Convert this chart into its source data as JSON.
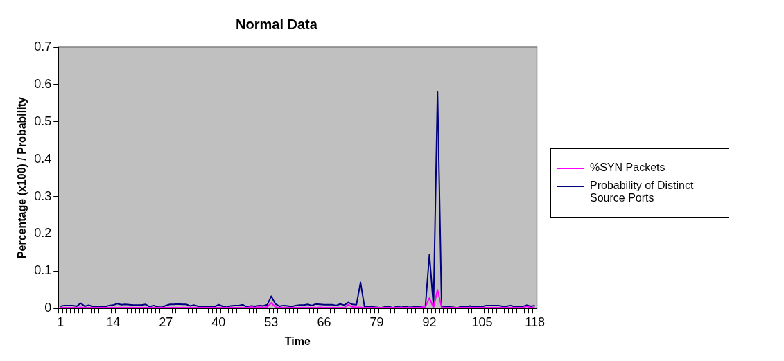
{
  "chart_data": {
    "type": "line",
    "title": "Normal Data",
    "xlabel": "Time",
    "ylabel": "Percentage (x100) / Probability",
    "categories": [
      "1",
      null,
      null,
      null,
      null,
      null,
      null,
      null,
      null,
      null,
      null,
      null,
      null,
      "14",
      null,
      null,
      null,
      null,
      null,
      null,
      null,
      null,
      null,
      null,
      null,
      null,
      "27",
      null,
      null,
      null,
      null,
      null,
      null,
      null,
      null,
      null,
      null,
      null,
      null,
      "40",
      null,
      null,
      null,
      null,
      null,
      null,
      null,
      null,
      null,
      null,
      null,
      null,
      "53",
      null,
      null,
      null,
      null,
      null,
      null,
      null,
      null,
      null,
      null,
      null,
      null,
      "66",
      null,
      null,
      null,
      null,
      null,
      null,
      null,
      null,
      null,
      null,
      null,
      null,
      "79",
      null,
      null,
      null,
      null,
      null,
      null,
      null,
      null,
      null,
      null,
      null,
      null,
      "92",
      null,
      null,
      null,
      null,
      null,
      null,
      null,
      null,
      null,
      null,
      null,
      null,
      "105",
      null,
      null,
      null,
      null,
      null,
      null,
      null,
      null,
      null,
      null,
      null,
      null,
      "118"
    ],
    "series": [
      {
        "name": "%SYN Packets",
        "color": "#ff00ff",
        "values": [
          0.002,
          0.002,
          0.002,
          0.002,
          0.002,
          0.003,
          0.002,
          0.002,
          0.002,
          0.002,
          0.002,
          0.002,
          0.002,
          0.002,
          0.002,
          0.002,
          0.002,
          0.002,
          0.002,
          0.002,
          0.002,
          0.002,
          0.002,
          0.002,
          0.002,
          0.002,
          0.002,
          0.002,
          0.002,
          0.002,
          0.002,
          0.002,
          0.002,
          0.002,
          0.002,
          0.002,
          0.002,
          0.002,
          0.002,
          0.002,
          0.002,
          0.002,
          0.002,
          0.002,
          0.002,
          0.002,
          0.002,
          0.004,
          0.002,
          0.004,
          0.002,
          0.004,
          0.015,
          0.004,
          0.002,
          0.002,
          0.002,
          0.002,
          0.002,
          0.002,
          0.002,
          0.002,
          0.002,
          0.002,
          0.003,
          0.002,
          0.002,
          0.002,
          0.002,
          0.002,
          0.002,
          0.01,
          0.004,
          0.003,
          0.003,
          0.002,
          0.002,
          0.002,
          0.002,
          0.002,
          0.002,
          0.002,
          0.002,
          0.002,
          0.002,
          0.002,
          0.002,
          0.002,
          0.002,
          0.003,
          0.005,
          0.028,
          0.002,
          0.05,
          0.003,
          0.002,
          0.002,
          0.002,
          0.002,
          0.002,
          0.002,
          0.002,
          0.002,
          0.002,
          0.002,
          0.002,
          0.002,
          0.002,
          0.002,
          0.002,
          0.002,
          0.002,
          0.002,
          0.002,
          0.002,
          0.006,
          0.002,
          0.003
        ]
      },
      {
        "name": "Probability of Distinct Source Ports",
        "color": "#000080",
        "values": [
          0.006,
          0.008,
          0.008,
          0.008,
          0.006,
          0.014,
          0.006,
          0.009,
          0.005,
          0.005,
          0.005,
          0.005,
          0.008,
          0.009,
          0.013,
          0.01,
          0.011,
          0.01,
          0.009,
          0.009,
          0.009,
          0.011,
          0.005,
          0.008,
          0.004,
          0.003,
          0.008,
          0.011,
          0.011,
          0.012,
          0.011,
          0.011,
          0.007,
          0.009,
          0.006,
          0.005,
          0.005,
          0.005,
          0.005,
          0.01,
          0.006,
          0.003,
          0.007,
          0.008,
          0.008,
          0.01,
          0.004,
          0.007,
          0.006,
          0.008,
          0.007,
          0.01,
          0.033,
          0.012,
          0.006,
          0.008,
          0.007,
          0.005,
          0.008,
          0.009,
          0.009,
          0.011,
          0.008,
          0.012,
          0.011,
          0.01,
          0.01,
          0.01,
          0.008,
          0.012,
          0.009,
          0.016,
          0.011,
          0.01,
          0.07,
          0.004,
          0.004,
          0.004,
          0.003,
          0.002,
          0.004,
          0.005,
          0.002,
          0.005,
          0.003,
          0.005,
          0.003,
          0.004,
          0.006,
          0.005,
          0.005,
          0.145,
          0.005,
          0.58,
          0.005,
          0.004,
          0.004,
          0.003,
          0.002,
          0.006,
          0.004,
          0.007,
          0.004,
          0.006,
          0.005,
          0.008,
          0.008,
          0.008,
          0.008,
          0.006,
          0.006,
          0.008,
          0.005,
          0.005,
          0.005,
          0.009,
          0.006,
          0.008
        ]
      }
    ],
    "ylim": [
      0,
      0.7
    ],
    "yticks": [
      0,
      0.1,
      0.2,
      0.3,
      0.4,
      0.5,
      0.6,
      0.7
    ],
    "grid": false,
    "legend": "right",
    "marker": "none",
    "line_style": "solid"
  }
}
